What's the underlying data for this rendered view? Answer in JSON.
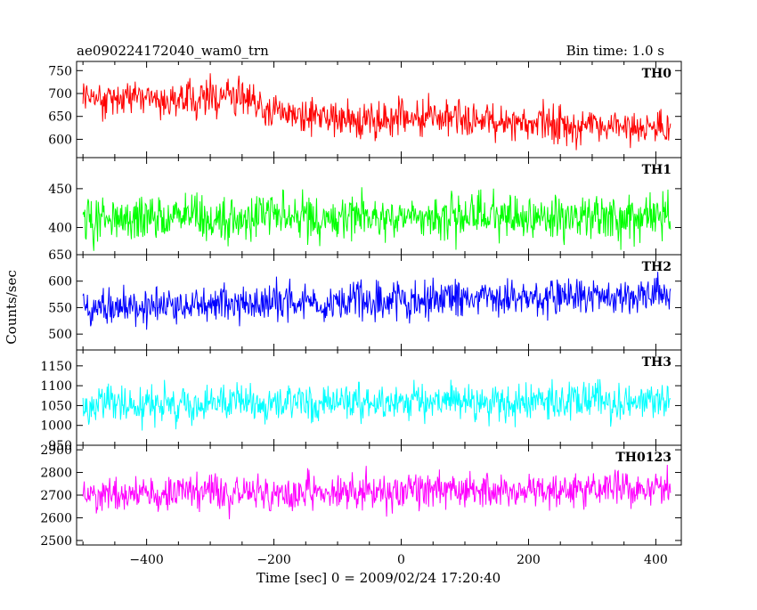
{
  "header": {
    "title": "ae090224172040_wam0_trn",
    "bin_time": "Bin time: 1.0 s"
  },
  "axes": {
    "ylabel": "Counts/sec",
    "xlabel": "Time [sec] 0 = 2009/02/24 17:20:40"
  },
  "chart_data": {
    "type": "line",
    "title": "ae090224172040_wam0_trn",
    "xlabel": "Time [sec] 0 = 2009/02/24 17:20:40",
    "ylabel": "Counts/sec",
    "xlim": [
      -510,
      440
    ],
    "x_ticks": [
      -400,
      -200,
      0,
      200,
      400
    ],
    "x_start": -500,
    "x_end": 423,
    "bin_time_s": 1.0,
    "panels": [
      {
        "name": "TH0",
        "color": "#ff0000",
        "ylim": [
          560,
          770
        ],
        "ticks": [
          600,
          650,
          700,
          750
        ],
        "trend": [
          [
            -500,
            690
          ],
          [
            -300,
            690
          ],
          [
            -225,
            690
          ],
          [
            -215,
            660
          ],
          [
            -20,
            635
          ],
          [
            0,
            655
          ],
          [
            20,
            650
          ],
          [
            423,
            620
          ]
        ],
        "spread": 36
      },
      {
        "name": "TH1",
        "color": "#00ff00",
        "ylim": [
          365,
          490
        ],
        "ticks": [
          400,
          450
        ],
        "trend": [
          [
            -500,
            412
          ],
          [
            423,
            414
          ]
        ],
        "spread": 27
      },
      {
        "name": "TH2",
        "color": "#0000ff",
        "ylim": [
          470,
          650
        ],
        "ticks": [
          500,
          550,
          600,
          650
        ],
        "trend": [
          [
            -500,
            550
          ],
          [
            423,
            575
          ]
        ],
        "spread": 32
      },
      {
        "name": "TH3",
        "color": "#00ffff",
        "ylim": [
          950,
          1190
        ],
        "ticks": [
          950,
          1000,
          1050,
          1100,
          1150
        ],
        "trend": [
          [
            -500,
            1050
          ],
          [
            423,
            1065
          ]
        ],
        "spread": 42
      },
      {
        "name": "TH0123",
        "color": "#ff00ff",
        "ylim": [
          2480,
          2920
        ],
        "ticks": [
          2500,
          2600,
          2700,
          2800,
          2900
        ],
        "trend": [
          [
            -500,
            2705
          ],
          [
            423,
            2725
          ]
        ],
        "spread": 70
      }
    ]
  }
}
